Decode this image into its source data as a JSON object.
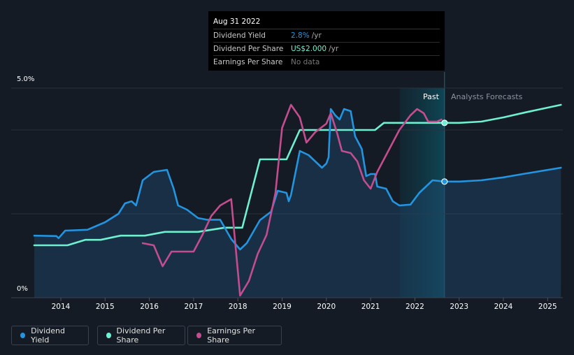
{
  "tooltip": {
    "date": "Aug 31 2022",
    "rows": [
      {
        "label": "Dividend Yield",
        "value": "2.8%",
        "suffix": "/yr",
        "color": "#2394df"
      },
      {
        "label": "Dividend Per Share",
        "value": "US$2.000",
        "suffix": "/yr",
        "color": "#6ff0d1"
      },
      {
        "label": "Earnings Per Share",
        "value": "No data",
        "suffix": "",
        "color": "#777777"
      }
    ]
  },
  "y_axis": {
    "top_label": "5.0%",
    "bottom_label": "0%"
  },
  "regions": {
    "past": "Past",
    "forecast": "Analysts Forecasts"
  },
  "legend": [
    {
      "label": "Dividend Yield",
      "color": "#2394df"
    },
    {
      "label": "Dividend Per Share",
      "color": "#6ff0d1"
    },
    {
      "label": "Earnings Per Share",
      "color": "#c34d8e"
    }
  ],
  "chart_data": {
    "type": "line",
    "x_ticks": [
      "2014",
      "2015",
      "2016",
      "2017",
      "2018",
      "2019",
      "2020",
      "2021",
      "2022",
      "2023",
      "2024",
      "2025"
    ],
    "ylim": [
      0,
      5
    ],
    "grid": true,
    "highlight_date": 2022.67,
    "series": [
      {
        "name": "Dividend Yield",
        "color": "#2394df",
        "points": [
          [
            2013.4,
            1.48
          ],
          [
            2013.9,
            1.47
          ],
          [
            2013.95,
            1.42
          ],
          [
            2014.1,
            1.6
          ],
          [
            2014.6,
            1.62
          ],
          [
            2015.0,
            1.8
          ],
          [
            2015.3,
            2.0
          ],
          [
            2015.45,
            2.25
          ],
          [
            2015.6,
            2.3
          ],
          [
            2015.7,
            2.2
          ],
          [
            2015.85,
            2.8
          ],
          [
            2016.1,
            3.0
          ],
          [
            2016.4,
            3.05
          ],
          [
            2016.55,
            2.6
          ],
          [
            2016.65,
            2.2
          ],
          [
            2016.85,
            2.1
          ],
          [
            2017.1,
            1.9
          ],
          [
            2017.3,
            1.86
          ],
          [
            2017.6,
            1.86
          ],
          [
            2017.85,
            1.4
          ],
          [
            2018.05,
            1.15
          ],
          [
            2018.2,
            1.3
          ],
          [
            2018.5,
            1.85
          ],
          [
            2018.75,
            2.05
          ],
          [
            2018.9,
            2.55
          ],
          [
            2019.1,
            2.5
          ],
          [
            2019.15,
            2.3
          ],
          [
            2019.2,
            2.45
          ],
          [
            2019.4,
            3.5
          ],
          [
            2019.6,
            3.4
          ],
          [
            2019.9,
            3.1
          ],
          [
            2020.0,
            3.2
          ],
          [
            2020.05,
            3.35
          ],
          [
            2020.1,
            4.5
          ],
          [
            2020.2,
            4.35
          ],
          [
            2020.3,
            4.25
          ],
          [
            2020.4,
            4.5
          ],
          [
            2020.55,
            4.45
          ],
          [
            2020.65,
            3.85
          ],
          [
            2020.8,
            3.55
          ],
          [
            2020.9,
            2.9
          ],
          [
            2021.0,
            2.95
          ],
          [
            2021.1,
            2.95
          ],
          [
            2021.15,
            2.65
          ],
          [
            2021.35,
            2.6
          ],
          [
            2021.5,
            2.3
          ],
          [
            2021.65,
            2.2
          ],
          [
            2021.9,
            2.22
          ],
          [
            2022.1,
            2.5
          ],
          [
            2022.4,
            2.8
          ],
          [
            2022.67,
            2.77
          ],
          [
            2023.0,
            2.77
          ],
          [
            2023.5,
            2.8
          ],
          [
            2024.0,
            2.87
          ],
          [
            2024.5,
            2.96
          ],
          [
            2025.3,
            3.1
          ]
        ]
      },
      {
        "name": "Dividend Per Share",
        "color": "#6ff0d1",
        "points": [
          [
            2013.4,
            1.25
          ],
          [
            2014.15,
            1.25
          ],
          [
            2014.55,
            1.38
          ],
          [
            2014.9,
            1.38
          ],
          [
            2015.35,
            1.48
          ],
          [
            2015.9,
            1.48
          ],
          [
            2016.35,
            1.57
          ],
          [
            2017.1,
            1.57
          ],
          [
            2017.7,
            1.67
          ],
          [
            2018.1,
            1.67
          ],
          [
            2018.5,
            3.3
          ],
          [
            2019.1,
            3.3
          ],
          [
            2019.4,
            4.0
          ],
          [
            2021.1,
            4.0
          ],
          [
            2021.3,
            4.17
          ],
          [
            2022.67,
            4.17
          ],
          [
            2023.0,
            4.17
          ],
          [
            2023.5,
            4.2
          ],
          [
            2024.0,
            4.3
          ],
          [
            2024.5,
            4.42
          ],
          [
            2025.3,
            4.6
          ]
        ]
      },
      {
        "name": "Earnings Per Share",
        "color": "#c34d8e",
        "points": [
          [
            2015.85,
            1.3
          ],
          [
            2016.1,
            1.25
          ],
          [
            2016.3,
            0.75
          ],
          [
            2016.5,
            1.1
          ],
          [
            2016.75,
            1.1
          ],
          [
            2017.0,
            1.1
          ],
          [
            2017.2,
            1.5
          ],
          [
            2017.4,
            1.95
          ],
          [
            2017.6,
            2.2
          ],
          [
            2017.85,
            2.35
          ],
          [
            2018.05,
            0.05
          ],
          [
            2018.25,
            0.4
          ],
          [
            2018.45,
            1.05
          ],
          [
            2018.65,
            1.5
          ],
          [
            2018.85,
            2.5
          ],
          [
            2019.0,
            4.05
          ],
          [
            2019.2,
            4.6
          ],
          [
            2019.4,
            4.3
          ],
          [
            2019.55,
            3.7
          ],
          [
            2019.75,
            3.95
          ],
          [
            2020.0,
            4.15
          ],
          [
            2020.1,
            4.4
          ],
          [
            2020.25,
            3.9
          ],
          [
            2020.35,
            3.5
          ],
          [
            2020.55,
            3.45
          ],
          [
            2020.7,
            3.25
          ],
          [
            2020.85,
            2.8
          ],
          [
            2021.0,
            2.6
          ],
          [
            2021.15,
            3.0
          ],
          [
            2021.4,
            3.5
          ],
          [
            2021.65,
            4.0
          ],
          [
            2021.9,
            4.35
          ],
          [
            2022.05,
            4.5
          ],
          [
            2022.2,
            4.4
          ],
          [
            2022.3,
            4.2
          ],
          [
            2022.5,
            4.2
          ],
          [
            2022.6,
            4.25
          ]
        ]
      }
    ]
  }
}
